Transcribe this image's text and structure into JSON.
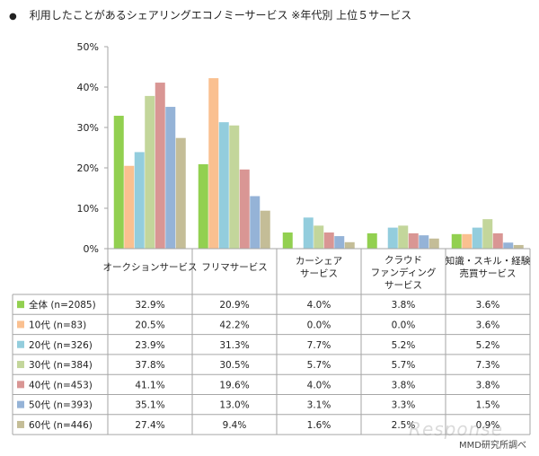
{
  "title": "利用したことがあるシェアリングエコノミーサービス ※年代別 上位５サービス",
  "credit": "MMD研究所調べ",
  "watermark": "Response",
  "chart_data": {
    "type": "bar",
    "categories": [
      [
        "オークションサービス"
      ],
      [
        "フリマサービス"
      ],
      [
        "カーシェア",
        "サービス"
      ],
      [
        "クラウド",
        "ファンディング",
        "サービス"
      ],
      [
        "知識・スキル・経験",
        "売買サービス"
      ]
    ],
    "ylim": [
      0,
      50
    ],
    "yticks": [
      0,
      10,
      20,
      30,
      40,
      50
    ],
    "ytick_labels": [
      "0%",
      "10%",
      "20%",
      "30%",
      "40%",
      "50%"
    ],
    "grid": false,
    "legend": "table-below",
    "series": [
      {
        "name": "全体 (n=2085)",
        "color": "#92d050",
        "values": [
          32.9,
          20.9,
          4.0,
          3.8,
          3.6
        ],
        "labels": [
          "32.9%",
          "20.9%",
          "4.0%",
          "3.8%",
          "3.6%"
        ]
      },
      {
        "name": "10代 (n=83)",
        "color": "#fac090",
        "values": [
          20.5,
          42.2,
          0.0,
          0.0,
          3.6
        ],
        "labels": [
          "20.5%",
          "42.2%",
          "0.0%",
          "0.0%",
          "3.6%"
        ]
      },
      {
        "name": "20代 (n=326)",
        "color": "#93cddd",
        "values": [
          23.9,
          31.3,
          7.7,
          5.2,
          5.2
        ],
        "labels": [
          "23.9%",
          "31.3%",
          "7.7%",
          "5.2%",
          "5.2%"
        ]
      },
      {
        "name": "30代 (n=384)",
        "color": "#c3d69b",
        "values": [
          37.8,
          30.5,
          5.7,
          5.7,
          7.3
        ],
        "labels": [
          "37.8%",
          "30.5%",
          "5.7%",
          "5.7%",
          "7.3%"
        ]
      },
      {
        "name": "40代 (n=453)",
        "color": "#d99694",
        "values": [
          41.1,
          19.6,
          4.0,
          3.8,
          3.8
        ],
        "labels": [
          "41.1%",
          "19.6%",
          "4.0%",
          "3.8%",
          "3.8%"
        ]
      },
      {
        "name": "50代 (n=393)",
        "color": "#95b3d7",
        "values": [
          35.1,
          13.0,
          3.1,
          3.3,
          1.5
        ],
        "labels": [
          "35.1%",
          "13.0%",
          "3.1%",
          "3.3%",
          "1.5%"
        ]
      },
      {
        "name": "60代 (n=446)",
        "color": "#c4bd97",
        "values": [
          27.4,
          9.4,
          1.6,
          2.5,
          0.9
        ],
        "labels": [
          "27.4%",
          "9.4%",
          "1.6%",
          "2.5%",
          "0.9%"
        ]
      }
    ]
  }
}
